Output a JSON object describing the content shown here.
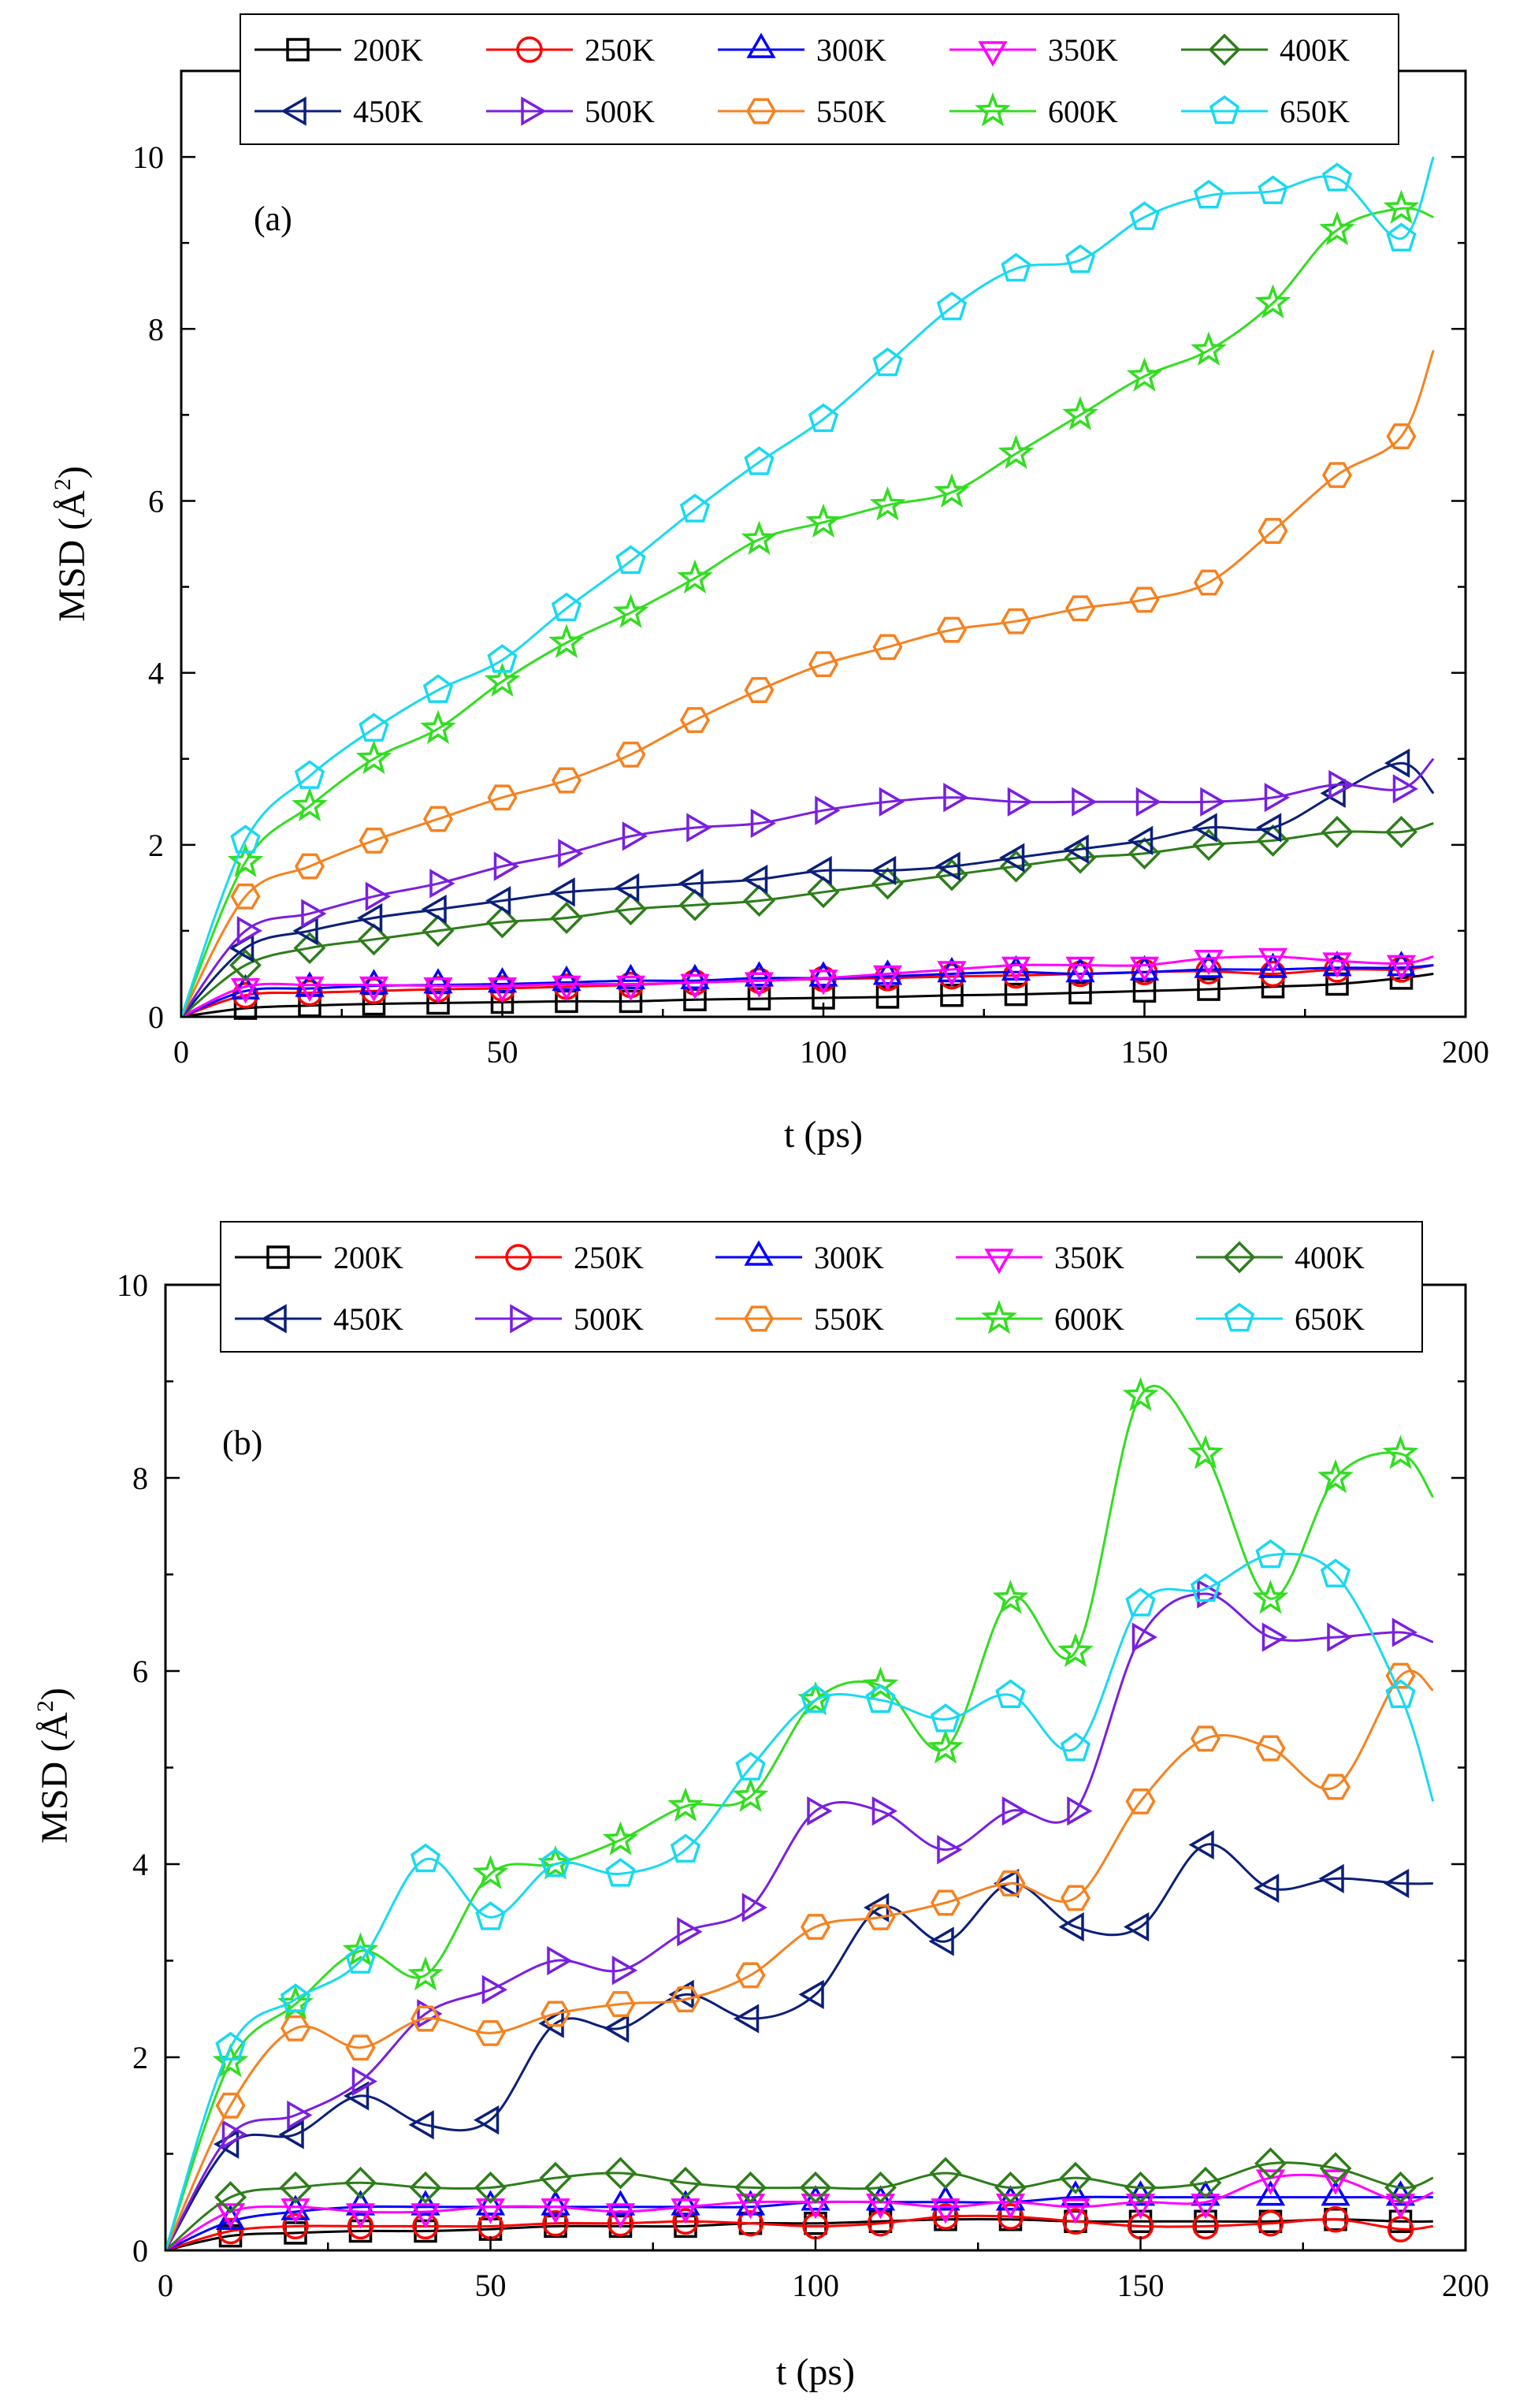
{
  "colors": {
    "200K": "#000000",
    "250K": "#ff0000",
    "300K": "#0000ff",
    "350K": "#ff00ff",
    "400K": "#2e7d1b",
    "450K": "#0b1f7a",
    "500K": "#7a1fe0",
    "550K": "#f58220",
    "600K": "#33dd22",
    "650K": "#19d9f0"
  },
  "chart_data": [
    {
      "type": "line",
      "panel": "(a)",
      "xlabel": "t (ps)",
      "ylabel_main": "MSD (Å",
      "ylabel_sup": "2",
      "ylabel_close": ")",
      "xlim": [
        0,
        200
      ],
      "ylim": [
        0,
        11
      ],
      "xticks": [
        0,
        50,
        100,
        150,
        200
      ],
      "yticks": [
        0,
        2,
        4,
        6,
        8,
        10
      ],
      "legend": [
        "200K",
        "250K",
        "300K",
        "350K",
        "400K",
        "450K",
        "500K",
        "550K",
        "600K",
        "650K"
      ],
      "x": [
        10,
        20,
        30,
        40,
        50,
        60,
        70,
        80,
        90,
        100,
        110,
        120,
        130,
        140,
        150,
        160,
        170,
        180,
        190
      ],
      "series": [
        {
          "name": "200K",
          "marker": "square",
          "end": 0.5,
          "values": [
            0.1,
            0.13,
            0.15,
            0.16,
            0.17,
            0.18,
            0.18,
            0.2,
            0.21,
            0.22,
            0.23,
            0.25,
            0.26,
            0.28,
            0.3,
            0.32,
            0.35,
            0.38,
            0.45
          ]
        },
        {
          "name": "250K",
          "marker": "circle",
          "end": 0.6,
          "values": [
            0.25,
            0.28,
            0.3,
            0.32,
            0.33,
            0.35,
            0.37,
            0.4,
            0.42,
            0.44,
            0.45,
            0.47,
            0.48,
            0.5,
            0.52,
            0.53,
            0.5,
            0.55,
            0.55
          ]
        },
        {
          "name": "300K",
          "marker": "triangle-up",
          "end": 0.6,
          "values": [
            0.3,
            0.33,
            0.36,
            0.37,
            0.38,
            0.4,
            0.42,
            0.42,
            0.45,
            0.45,
            0.47,
            0.5,
            0.52,
            0.5,
            0.52,
            0.55,
            0.55,
            0.57,
            0.57
          ]
        },
        {
          "name": "350K",
          "marker": "triangle-down",
          "end": 0.7,
          "values": [
            0.35,
            0.37,
            0.37,
            0.36,
            0.36,
            0.38,
            0.38,
            0.4,
            0.42,
            0.45,
            0.5,
            0.55,
            0.6,
            0.6,
            0.6,
            0.68,
            0.7,
            0.65,
            0.62
          ]
        },
        {
          "name": "400K",
          "marker": "diamond",
          "end": 2.25,
          "values": [
            0.6,
            0.8,
            0.9,
            1.0,
            1.1,
            1.15,
            1.25,
            1.3,
            1.35,
            1.45,
            1.55,
            1.65,
            1.75,
            1.85,
            1.9,
            2.0,
            2.05,
            2.15,
            2.15
          ]
        },
        {
          "name": "450K",
          "marker": "triangle-left",
          "end": 2.6,
          "values": [
            0.8,
            1.0,
            1.15,
            1.25,
            1.35,
            1.45,
            1.5,
            1.55,
            1.6,
            1.7,
            1.7,
            1.75,
            1.85,
            1.95,
            2.05,
            2.2,
            2.2,
            2.6,
            2.95
          ]
        },
        {
          "name": "500K",
          "marker": "triangle-right",
          "end": 3.0,
          "values": [
            1.0,
            1.2,
            1.4,
            1.55,
            1.75,
            1.9,
            2.1,
            2.2,
            2.25,
            2.4,
            2.5,
            2.55,
            2.5,
            2.5,
            2.5,
            2.5,
            2.55,
            2.7,
            2.65
          ]
        },
        {
          "name": "550K",
          "marker": "hexagon",
          "end": 7.75,
          "values": [
            1.4,
            1.75,
            2.05,
            2.3,
            2.55,
            2.75,
            3.05,
            3.45,
            3.8,
            4.1,
            4.3,
            4.5,
            4.6,
            4.75,
            4.85,
            5.05,
            5.65,
            6.3,
            6.75
          ]
        },
        {
          "name": "600K",
          "marker": "star",
          "end": 9.3,
          "values": [
            1.8,
            2.45,
            3.0,
            3.35,
            3.9,
            4.35,
            4.7,
            5.1,
            5.55,
            5.75,
            5.95,
            6.1,
            6.55,
            7.0,
            7.45,
            7.75,
            8.3,
            9.15,
            9.4
          ]
        },
        {
          "name": "650K",
          "marker": "pentagon",
          "end": 10.0,
          "values": [
            2.05,
            2.8,
            3.35,
            3.8,
            4.15,
            4.75,
            5.3,
            5.9,
            6.45,
            6.95,
            7.6,
            8.25,
            8.7,
            8.8,
            9.3,
            9.55,
            9.6,
            9.75,
            9.05
          ]
        }
      ]
    },
    {
      "type": "line",
      "panel": "(b)",
      "xlabel": "t (ps)",
      "ylabel_main": "MSD (Å",
      "ylabel_sup": "2",
      "ylabel_close": ")",
      "xlim": [
        0,
        200
      ],
      "ylim": [
        0,
        10
      ],
      "xticks": [
        0,
        50,
        100,
        150,
        200
      ],
      "yticks": [
        0,
        2,
        4,
        6,
        8,
        10
      ],
      "legend": [
        "200K",
        "250K",
        "300K",
        "350K",
        "400K",
        "450K",
        "500K",
        "550K",
        "600K",
        "650K"
      ],
      "x": [
        10,
        20,
        30,
        40,
        50,
        60,
        70,
        80,
        90,
        100,
        110,
        120,
        130,
        140,
        150,
        160,
        170,
        180,
        190
      ],
      "series": [
        {
          "name": "200K",
          "marker": "square",
          "end": 0.3,
          "values": [
            0.15,
            0.18,
            0.2,
            0.2,
            0.22,
            0.25,
            0.25,
            0.25,
            0.28,
            0.28,
            0.3,
            0.32,
            0.32,
            0.3,
            0.3,
            0.3,
            0.3,
            0.32,
            0.3
          ]
        },
        {
          "name": "250K",
          "marker": "circle",
          "end": 0.25,
          "values": [
            0.2,
            0.25,
            0.25,
            0.25,
            0.25,
            0.28,
            0.28,
            0.3,
            0.28,
            0.25,
            0.28,
            0.35,
            0.35,
            0.3,
            0.25,
            0.25,
            0.28,
            0.32,
            0.22
          ]
        },
        {
          "name": "300K",
          "marker": "triangle-up",
          "end": 0.55,
          "values": [
            0.3,
            0.4,
            0.45,
            0.45,
            0.45,
            0.45,
            0.45,
            0.45,
            0.45,
            0.5,
            0.5,
            0.5,
            0.5,
            0.55,
            0.55,
            0.55,
            0.55,
            0.55,
            0.55
          ]
        },
        {
          "name": "350K",
          "marker": "triangle-down",
          "end": 0.6,
          "values": [
            0.4,
            0.45,
            0.4,
            0.4,
            0.45,
            0.45,
            0.4,
            0.45,
            0.5,
            0.5,
            0.5,
            0.45,
            0.5,
            0.45,
            0.5,
            0.5,
            0.75,
            0.75,
            0.5
          ]
        },
        {
          "name": "400K",
          "marker": "diamond",
          "end": 0.75,
          "values": [
            0.55,
            0.65,
            0.7,
            0.65,
            0.65,
            0.75,
            0.8,
            0.7,
            0.65,
            0.65,
            0.65,
            0.8,
            0.65,
            0.75,
            0.65,
            0.7,
            0.9,
            0.85,
            0.65
          ]
        },
        {
          "name": "450K",
          "marker": "triangle-left",
          "end": 3.8,
          "values": [
            1.1,
            1.2,
            1.6,
            1.3,
            1.35,
            2.35,
            2.3,
            2.65,
            2.4,
            2.65,
            3.55,
            3.2,
            3.8,
            3.35,
            3.35,
            4.2,
            3.75,
            3.85,
            3.8
          ]
        },
        {
          "name": "500K",
          "marker": "triangle-right",
          "end": 6.3,
          "values": [
            1.2,
            1.4,
            1.75,
            2.45,
            2.7,
            3.0,
            2.9,
            3.3,
            3.55,
            4.55,
            4.55,
            4.15,
            4.55,
            4.55,
            6.35,
            6.8,
            6.35,
            6.35,
            6.4
          ]
        },
        {
          "name": "550K",
          "marker": "hexagon",
          "end": 5.8,
          "values": [
            1.5,
            2.3,
            2.1,
            2.4,
            2.25,
            2.45,
            2.55,
            2.6,
            2.85,
            3.35,
            3.45,
            3.6,
            3.8,
            3.65,
            4.65,
            5.3,
            5.2,
            4.8,
            5.95
          ]
        },
        {
          "name": "600K",
          "marker": "star",
          "end": 7.8,
          "values": [
            1.95,
            2.55,
            3.1,
            2.85,
            3.9,
            4.0,
            4.25,
            4.6,
            4.7,
            5.7,
            5.85,
            5.2,
            6.75,
            6.2,
            8.85,
            8.25,
            6.75,
            8.0,
            8.25
          ]
        },
        {
          "name": "650K",
          "marker": "pentagon",
          "end": 4.65,
          "values": [
            2.1,
            2.6,
            3.0,
            4.05,
            3.45,
            4.0,
            3.9,
            4.15,
            5.0,
            5.7,
            5.7,
            5.5,
            5.75,
            5.2,
            6.7,
            6.85,
            7.2,
            7.0,
            5.75
          ]
        }
      ]
    }
  ]
}
